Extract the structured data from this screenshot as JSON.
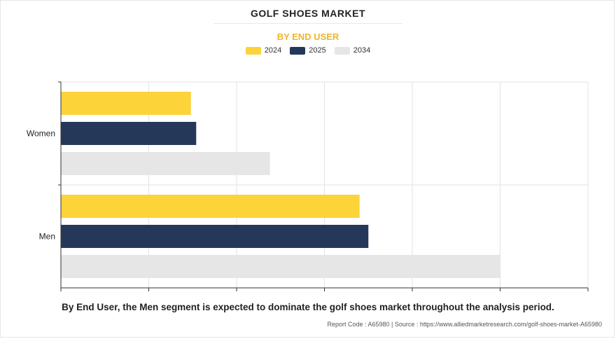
{
  "header": {
    "title": "GOLF SHOES MARKET",
    "subtitle": "BY END USER"
  },
  "colors": {
    "accent": "#f0b528",
    "series_2024": "#fdd33a",
    "series_2025": "#263859",
    "series_2034": "#e6e6e6"
  },
  "chart_data": {
    "type": "bar",
    "orientation": "horizontal",
    "categories": [
      "Women",
      "Men"
    ],
    "series": [
      {
        "name": "2024",
        "values": [
          1.48,
          3.4
        ]
      },
      {
        "name": "2025",
        "values": [
          1.54,
          3.5
        ]
      },
      {
        "name": "2034",
        "values": [
          2.38,
          5.0
        ]
      }
    ],
    "xlim": [
      0,
      6
    ],
    "grid": true,
    "legend_position": "top-center",
    "title": "GOLF SHOES MARKET",
    "subtitle": "BY END USER"
  },
  "caption": "By End User, the Men segment is expected to dominate the golf shoes market throughout the analysis period.",
  "footer": "Report Code : A65980  |  Source : https://www.alliedmarketresearch.com/golf-shoes-market-A65980"
}
